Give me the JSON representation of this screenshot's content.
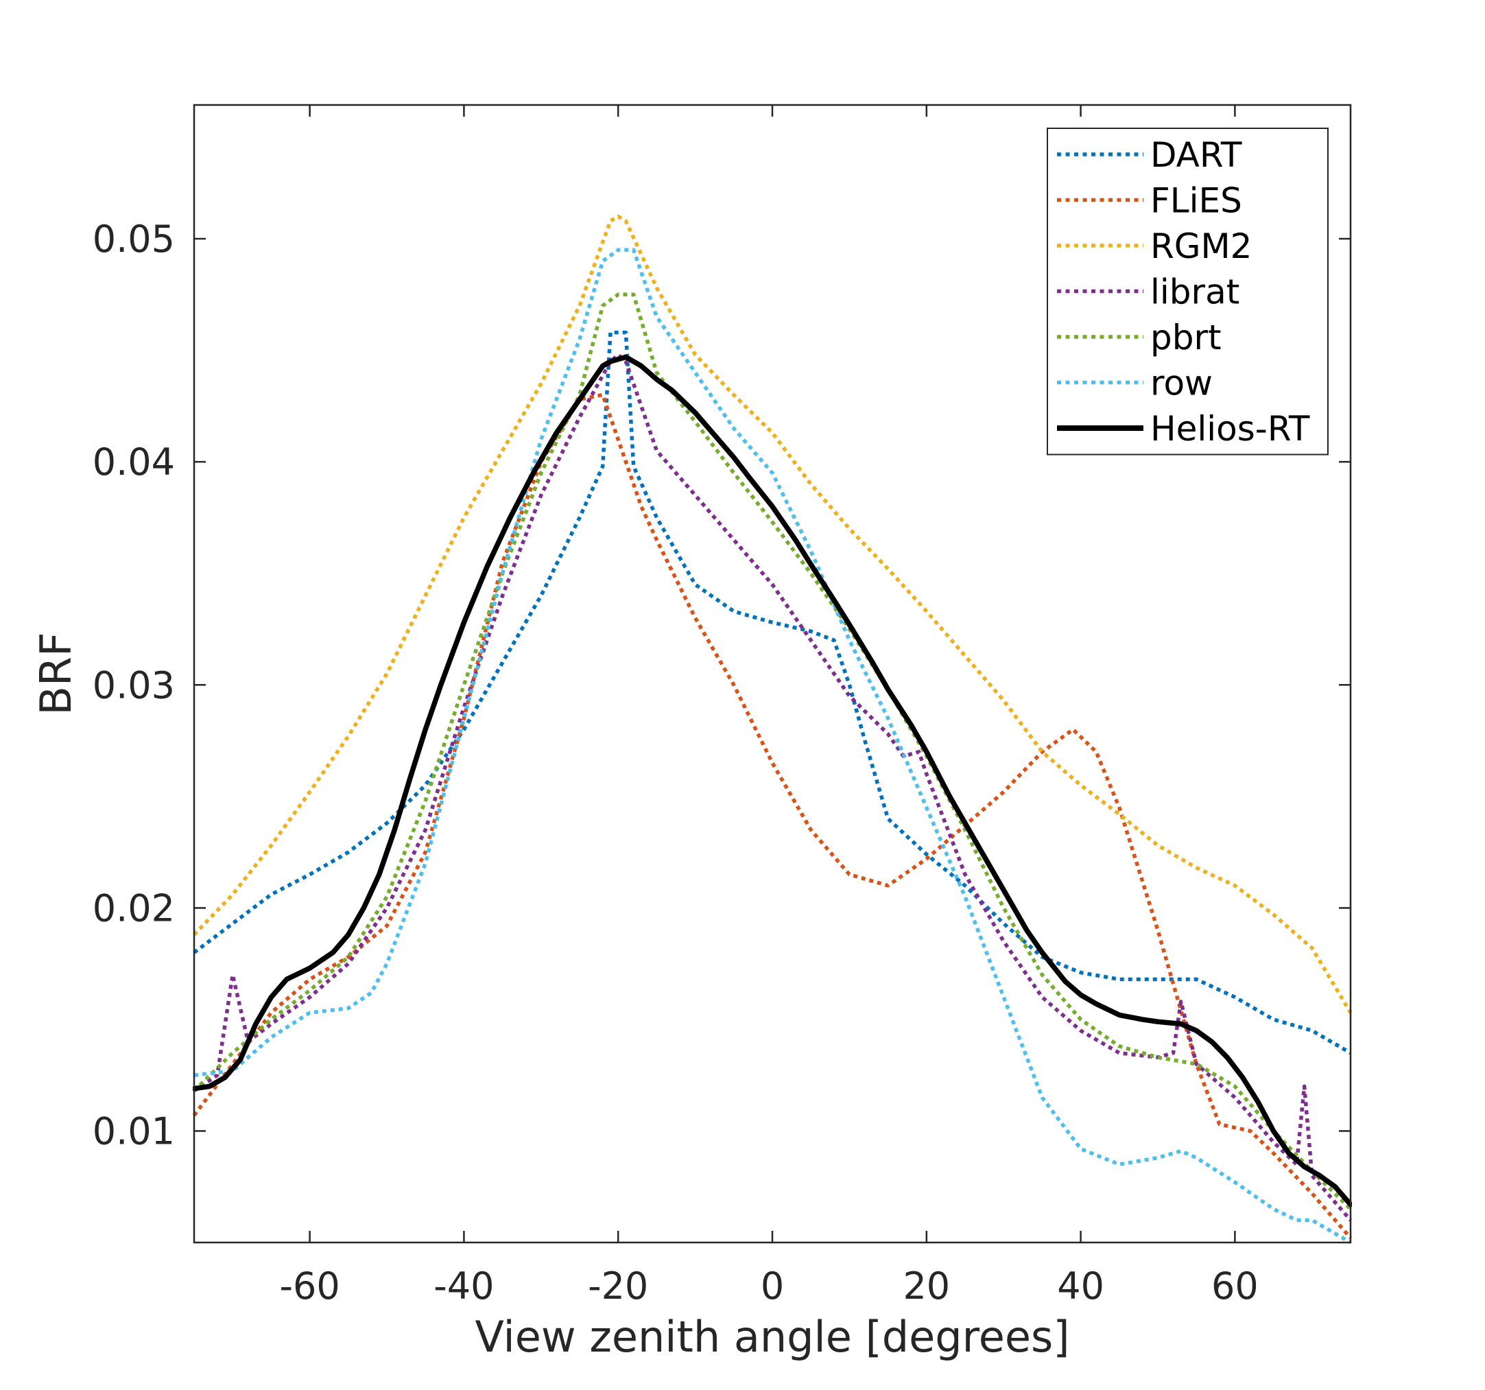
{
  "chart_data": {
    "type": "line",
    "title": "",
    "xlabel": "View zenith angle [degrees]",
    "ylabel": "BRF",
    "xlim": [
      -75,
      75
    ],
    "ylim": [
      0.005,
      0.056
    ],
    "xticks": [
      -60,
      -40,
      -20,
      0,
      20,
      40,
      60
    ],
    "xtick_labels": [
      "-60",
      "-40",
      "-20",
      "0",
      "20",
      "40",
      "60"
    ],
    "yticks": [
      0.01,
      0.02,
      0.03,
      0.04,
      0.05
    ],
    "ytick_labels": [
      "0.01",
      "0.02",
      "0.03",
      "0.04",
      "0.05"
    ],
    "grid": false,
    "legend_position": "top-right",
    "series": [
      {
        "name": "DART",
        "color": "#0072BD",
        "style": "dotted",
        "x": [
          -75,
          -70,
          -65,
          -60,
          -55,
          -50,
          -45,
          -40,
          -35,
          -30,
          -25,
          -22,
          -21,
          -20,
          -19,
          -18,
          -15,
          -10,
          -5,
          0,
          5,
          8,
          10,
          12,
          15,
          20,
          25,
          30,
          35,
          40,
          45,
          50,
          55,
          60,
          65,
          70,
          75
        ],
        "y": [
          0.018,
          0.0193,
          0.0206,
          0.0215,
          0.0225,
          0.0238,
          0.0255,
          0.028,
          0.031,
          0.034,
          0.0375,
          0.0398,
          0.0458,
          0.0458,
          0.0458,
          0.0398,
          0.0375,
          0.0345,
          0.0333,
          0.0328,
          0.0324,
          0.032,
          0.03,
          0.0275,
          0.024,
          0.0224,
          0.021,
          0.0193,
          0.0178,
          0.0171,
          0.0168,
          0.0168,
          0.0168,
          0.016,
          0.015,
          0.0145,
          0.0135
        ]
      },
      {
        "name": "FLiES",
        "color": "#D95319",
        "style": "dotted",
        "x": [
          -75,
          -70,
          -65,
          -60,
          -55,
          -50,
          -45,
          -40,
          -35,
          -30,
          -25,
          -22,
          -20,
          -17,
          -15,
          -10,
          -5,
          0,
          5,
          10,
          15,
          20,
          25,
          30,
          35,
          39,
          42,
          45,
          50,
          55,
          58,
          62,
          65,
          70,
          75
        ],
        "y": [
          0.0107,
          0.013,
          0.0153,
          0.0168,
          0.0178,
          0.0192,
          0.0225,
          0.0285,
          0.0355,
          0.04,
          0.0428,
          0.043,
          0.041,
          0.038,
          0.0365,
          0.033,
          0.03,
          0.0265,
          0.0235,
          0.0215,
          0.021,
          0.0222,
          0.0237,
          0.0252,
          0.027,
          0.028,
          0.027,
          0.0245,
          0.019,
          0.013,
          0.0103,
          0.01,
          0.009,
          0.0072,
          0.0052
        ]
      },
      {
        "name": "RGM2",
        "color": "#EDB120",
        "style": "dotted",
        "x": [
          -75,
          -70,
          -65,
          -60,
          -55,
          -50,
          -45,
          -40,
          -35,
          -30,
          -25,
          -21,
          -20,
          -19,
          -15,
          -10,
          -5,
          0,
          5,
          10,
          15,
          20,
          25,
          30,
          35,
          40,
          45,
          50,
          55,
          60,
          65,
          70,
          75
        ],
        "y": [
          0.0188,
          0.0206,
          0.0228,
          0.0252,
          0.0277,
          0.0305,
          0.034,
          0.0375,
          0.0405,
          0.0435,
          0.047,
          0.0508,
          0.051,
          0.0508,
          0.0478,
          0.0448,
          0.043,
          0.0413,
          0.039,
          0.037,
          0.0352,
          0.0333,
          0.0313,
          0.0293,
          0.027,
          0.0255,
          0.0242,
          0.0228,
          0.0218,
          0.021,
          0.0197,
          0.0182,
          0.0153
        ]
      },
      {
        "name": "librat",
        "color": "#7E2F8E",
        "style": "dotted",
        "x": [
          -75,
          -72,
          -70,
          -68,
          -65,
          -60,
          -55,
          -50,
          -45,
          -40,
          -35,
          -30,
          -25,
          -21,
          -20,
          -19,
          -17,
          -15,
          -10,
          -5,
          0,
          5,
          10,
          15,
          17,
          19,
          20,
          25,
          30,
          35,
          40,
          45,
          50,
          52,
          53,
          55,
          60,
          65,
          68,
          69,
          70,
          75
        ],
        "y": [
          0.0118,
          0.0125,
          0.017,
          0.014,
          0.0148,
          0.016,
          0.0175,
          0.02,
          0.0235,
          0.029,
          0.034,
          0.0385,
          0.042,
          0.0445,
          0.0448,
          0.0445,
          0.0425,
          0.0405,
          0.0385,
          0.0365,
          0.0345,
          0.032,
          0.0295,
          0.0278,
          0.0268,
          0.027,
          0.026,
          0.0215,
          0.0185,
          0.016,
          0.0145,
          0.0135,
          0.0133,
          0.0135,
          0.0158,
          0.013,
          0.0115,
          0.0095,
          0.0085,
          0.012,
          0.008,
          0.006
        ]
      },
      {
        "name": "pbrt",
        "color": "#77AC30",
        "style": "dotted",
        "x": [
          -75,
          -70,
          -65,
          -60,
          -55,
          -50,
          -45,
          -40,
          -35,
          -30,
          -25,
          -22,
          -20,
          -18,
          -15,
          -10,
          -5,
          0,
          5,
          10,
          15,
          20,
          25,
          30,
          35,
          40,
          45,
          50,
          55,
          60,
          65,
          70,
          75
        ],
        "y": [
          0.0118,
          0.0135,
          0.015,
          0.0163,
          0.0178,
          0.0205,
          0.0248,
          0.03,
          0.035,
          0.0395,
          0.043,
          0.047,
          0.0475,
          0.0475,
          0.044,
          0.0418,
          0.0395,
          0.0373,
          0.035,
          0.0325,
          0.0298,
          0.0268,
          0.0235,
          0.02,
          0.017,
          0.015,
          0.0138,
          0.0133,
          0.013,
          0.012,
          0.01,
          0.0082,
          0.0065
        ]
      },
      {
        "name": "row",
        "color": "#4DBEEE",
        "style": "dotted",
        "x": [
          -75,
          -70,
          -65,
          -60,
          -55,
          -52,
          -50,
          -45,
          -40,
          -35,
          -30,
          -25,
          -22,
          -20,
          -18,
          -15,
          -10,
          -5,
          0,
          5,
          10,
          15,
          20,
          25,
          30,
          35,
          40,
          45,
          50,
          53,
          55,
          60,
          65,
          68,
          70,
          75
        ],
        "y": [
          0.0125,
          0.0127,
          0.0142,
          0.0153,
          0.0155,
          0.0162,
          0.0175,
          0.022,
          0.0285,
          0.035,
          0.041,
          0.0455,
          0.049,
          0.0495,
          0.0495,
          0.0465,
          0.044,
          0.0415,
          0.0395,
          0.036,
          0.032,
          0.0285,
          0.0245,
          0.0205,
          0.016,
          0.0115,
          0.0092,
          0.0085,
          0.0088,
          0.0091,
          0.0088,
          0.0077,
          0.0065,
          0.006,
          0.006,
          0.005
        ]
      },
      {
        "name": "Helios-RT",
        "color": "#000000",
        "style": "solid",
        "x": [
          -75,
          -73,
          -71,
          -69,
          -67,
          -65,
          -63,
          -60,
          -57,
          -55,
          -53,
          -51,
          -49,
          -47,
          -45,
          -43,
          -40,
          -37,
          -34,
          -31,
          -28,
          -25,
          -22,
          -21,
          -19,
          -17,
          -15,
          -13,
          -10,
          -7,
          -5,
          -3,
          0,
          3,
          5,
          8,
          10,
          13,
          15,
          18,
          20,
          23,
          25,
          28,
          30,
          33,
          35,
          38,
          40,
          42,
          45,
          48,
          50,
          53,
          55,
          57,
          59,
          61,
          63,
          65,
          67,
          69,
          71,
          73,
          75
        ],
        "y": [
          0.0119,
          0.012,
          0.0124,
          0.0132,
          0.0148,
          0.016,
          0.0168,
          0.0173,
          0.018,
          0.0188,
          0.02,
          0.0215,
          0.0235,
          0.0258,
          0.028,
          0.03,
          0.0328,
          0.0353,
          0.0375,
          0.0395,
          0.0413,
          0.0428,
          0.0443,
          0.0445,
          0.0447,
          0.0443,
          0.0437,
          0.0432,
          0.0422,
          0.041,
          0.0402,
          0.0393,
          0.038,
          0.0365,
          0.0354,
          0.0338,
          0.0327,
          0.031,
          0.0298,
          0.0282,
          0.027,
          0.025,
          0.0238,
          0.022,
          0.0208,
          0.019,
          0.018,
          0.0167,
          0.0161,
          0.0157,
          0.0152,
          0.015,
          0.0149,
          0.0148,
          0.0145,
          0.014,
          0.0133,
          0.0124,
          0.0113,
          0.01,
          0.009,
          0.0084,
          0.008,
          0.0075,
          0.0067
        ]
      }
    ]
  }
}
